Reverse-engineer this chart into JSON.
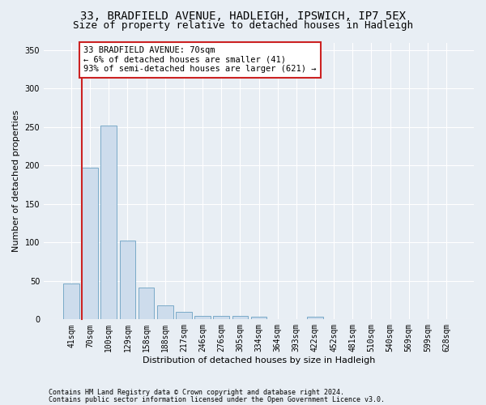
{
  "title1": "33, BRADFIELD AVENUE, HADLEIGH, IPSWICH, IP7 5EX",
  "title2": "Size of property relative to detached houses in Hadleigh",
  "xlabel": "Distribution of detached houses by size in Hadleigh",
  "ylabel": "Number of detached properties",
  "categories": [
    "41sqm",
    "70sqm",
    "100sqm",
    "129sqm",
    "158sqm",
    "188sqm",
    "217sqm",
    "246sqm",
    "276sqm",
    "305sqm",
    "334sqm",
    "364sqm",
    "393sqm",
    "422sqm",
    "452sqm",
    "481sqm",
    "510sqm",
    "540sqm",
    "569sqm",
    "599sqm",
    "628sqm"
  ],
  "values": [
    47,
    197,
    252,
    102,
    41,
    18,
    10,
    5,
    5,
    5,
    4,
    0,
    0,
    3,
    0,
    0,
    0,
    0,
    0,
    0,
    0
  ],
  "bar_color": "#cddcec",
  "bar_edge_color": "#7aaac8",
  "highlight_bar_index": 1,
  "highlight_color": "#cc2222",
  "annotation_text": "33 BRADFIELD AVENUE: 70sqm\n← 6% of detached houses are smaller (41)\n93% of semi-detached houses are larger (621) →",
  "annotation_box_color": "#ffffff",
  "annotation_box_edge": "#cc2222",
  "ylim": [
    0,
    360
  ],
  "yticks": [
    0,
    50,
    100,
    150,
    200,
    250,
    300,
    350
  ],
  "footnote1": "Contains HM Land Registry data © Crown copyright and database right 2024.",
  "footnote2": "Contains public sector information licensed under the Open Government Licence v3.0.",
  "background_color": "#e8eef4",
  "plot_background": "#e8eef4",
  "grid_color": "#ffffff",
  "title1_fontsize": 10,
  "title2_fontsize": 9,
  "axis_label_fontsize": 8,
  "tick_fontsize": 7,
  "annotation_fontsize": 7.5,
  "footnote_fontsize": 6
}
